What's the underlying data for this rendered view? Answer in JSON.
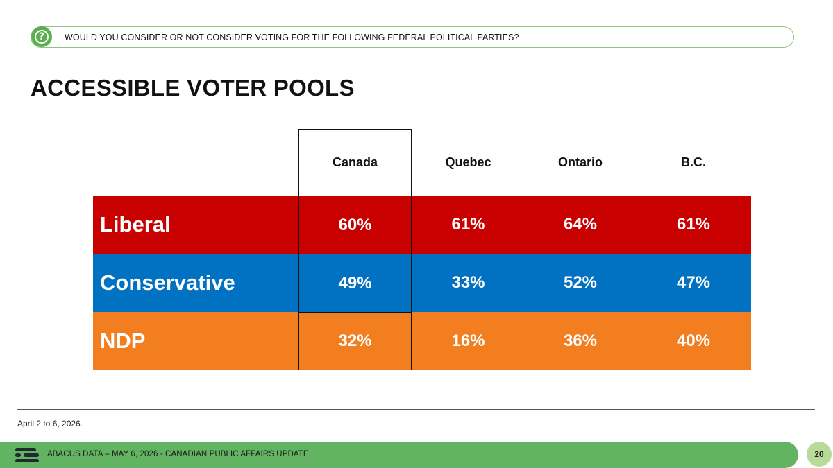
{
  "question": {
    "icon": "question-mark-icon",
    "text": "WOULD YOU CONSIDER OR NOT CONSIDER VOTING FOR THE FOLLOWING FEDERAL POLITICAL PARTIES?"
  },
  "title": "ACCESSIBLE VOTER POOLS",
  "table": {
    "columns": [
      "Canada",
      "Quebec",
      "Ontario",
      "B.C."
    ],
    "highlighted_column": "Canada",
    "rows": [
      {
        "party": "Liberal",
        "color": "#c90000",
        "values": [
          "60%",
          "61%",
          "64%",
          "61%"
        ]
      },
      {
        "party": "Conservative",
        "color": "#0171c2",
        "values": [
          "49%",
          "33%",
          "52%",
          "47%"
        ]
      },
      {
        "party": "NDP",
        "color": "#f27e20",
        "values": [
          "32%",
          "16%",
          "36%",
          "40%"
        ]
      }
    ]
  },
  "source_note": "April 2 to 6, 2026.",
  "footer": {
    "logo": "abacus-logo-icon",
    "text": "ABACUS DATA – MAY 6, 2026 - CANADIAN PUBLIC AFFAIRS UPDATE",
    "page_number": "20",
    "color": "#62b462"
  }
}
